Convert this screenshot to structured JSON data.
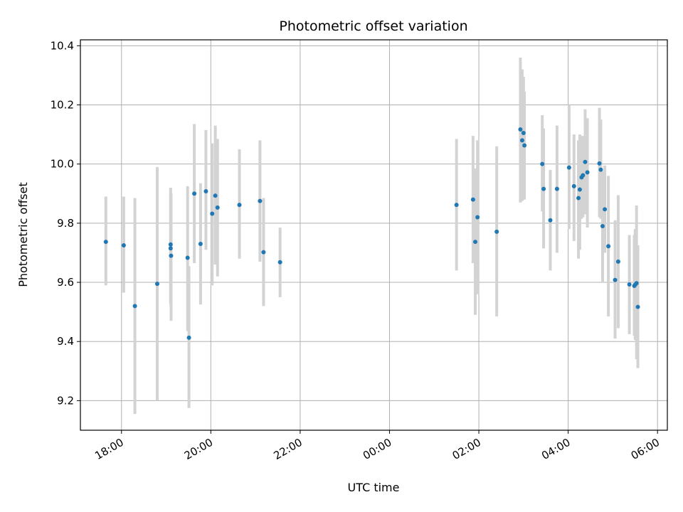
{
  "chart_data": {
    "type": "scatter",
    "title": "Photometric offset variation",
    "xlabel": "UTC time",
    "ylabel": "Photometric offset",
    "x_unit": "hours relative to 00:00 UTC (previous evening negative)",
    "xlim": [
      -6.92,
      6.22
    ],
    "ylim": [
      9.1,
      10.42
    ],
    "grid": true,
    "x_ticks": [
      {
        "value": -6,
        "label": "18:00"
      },
      {
        "value": -4,
        "label": "20:00"
      },
      {
        "value": -2,
        "label": "22:00"
      },
      {
        "value": 0,
        "label": "00:00"
      },
      {
        "value": 2,
        "label": "02:00"
      },
      {
        "value": 4,
        "label": "04:00"
      },
      {
        "value": 6,
        "label": "06:00"
      }
    ],
    "y_ticks": [
      {
        "value": 9.2,
        "label": "9.2"
      },
      {
        "value": 9.4,
        "label": "9.4"
      },
      {
        "value": 9.6,
        "label": "9.6"
      },
      {
        "value": 9.8,
        "label": "9.8"
      },
      {
        "value": 10.0,
        "label": "10.0"
      },
      {
        "value": 10.2,
        "label": "10.2"
      },
      {
        "value": 10.4,
        "label": "10.4"
      }
    ],
    "colors": {
      "point": "#1f77b4",
      "errorbar": "#d3d3d3",
      "grid": "#b0b0b0"
    },
    "points": [
      {
        "x": -6.35,
        "y": 9.737,
        "ylo": 9.59,
        "yhi": 9.89
      },
      {
        "x": -5.95,
        "y": 9.725,
        "ylo": 9.565,
        "yhi": 9.89
      },
      {
        "x": -5.7,
        "y": 9.52,
        "ylo": 9.155,
        "yhi": 9.885
      },
      {
        "x": -5.2,
        "y": 9.595,
        "ylo": 9.2,
        "yhi": 9.99
      },
      {
        "x": -4.9,
        "y": 9.728,
        "ylo": 9.525,
        "yhi": 9.92
      },
      {
        "x": -4.9,
        "y": 9.715,
        "ylo": 9.53,
        "yhi": 9.91
      },
      {
        "x": -4.89,
        "y": 9.69,
        "ylo": 9.47,
        "yhi": 9.9
      },
      {
        "x": -4.52,
        "y": 9.683,
        "ylo": 9.435,
        "yhi": 9.925
      },
      {
        "x": -4.49,
        "y": 9.413,
        "ylo": 9.175,
        "yhi": 9.655
      },
      {
        "x": -4.37,
        "y": 9.9,
        "ylo": 9.665,
        "yhi": 10.135
      },
      {
        "x": -4.23,
        "y": 9.73,
        "ylo": 9.525,
        "yhi": 9.935
      },
      {
        "x": -4.11,
        "y": 9.908,
        "ylo": 9.71,
        "yhi": 10.115
      },
      {
        "x": -3.97,
        "y": 9.832,
        "ylo": 9.59,
        "yhi": 10.07
      },
      {
        "x": -3.9,
        "y": 9.893,
        "ylo": 9.66,
        "yhi": 10.13
      },
      {
        "x": -3.85,
        "y": 9.853,
        "ylo": 9.62,
        "yhi": 10.085
      },
      {
        "x": -3.36,
        "y": 9.862,
        "ylo": 9.68,
        "yhi": 10.05
      },
      {
        "x": -2.9,
        "y": 9.875,
        "ylo": 9.67,
        "yhi": 10.08
      },
      {
        "x": -2.82,
        "y": 9.702,
        "ylo": 9.52,
        "yhi": 9.885
      },
      {
        "x": -2.45,
        "y": 9.668,
        "ylo": 9.55,
        "yhi": 9.785
      },
      {
        "x": 1.5,
        "y": 9.862,
        "ylo": 9.64,
        "yhi": 10.085
      },
      {
        "x": 1.87,
        "y": 9.88,
        "ylo": 9.665,
        "yhi": 10.095
      },
      {
        "x": 1.92,
        "y": 9.737,
        "ylo": 9.49,
        "yhi": 9.985
      },
      {
        "x": 1.97,
        "y": 9.82,
        "ylo": 9.56,
        "yhi": 10.08
      },
      {
        "x": 2.4,
        "y": 9.771,
        "ylo": 9.485,
        "yhi": 10.06
      },
      {
        "x": 2.93,
        "y": 10.117,
        "ylo": 9.87,
        "yhi": 10.36
      },
      {
        "x": 2.97,
        "y": 10.08,
        "ylo": 9.875,
        "yhi": 10.32
      },
      {
        "x": 3.0,
        "y": 10.105,
        "ylo": 9.88,
        "yhi": 10.295
      },
      {
        "x": 3.02,
        "y": 10.063,
        "ylo": 9.88,
        "yhi": 10.245
      },
      {
        "x": 3.42,
        "y": 10.0,
        "ylo": 9.84,
        "yhi": 10.165
      },
      {
        "x": 3.45,
        "y": 9.916,
        "ylo": 9.715,
        "yhi": 10.12
      },
      {
        "x": 3.6,
        "y": 9.81,
        "ylo": 9.64,
        "yhi": 9.98
      },
      {
        "x": 3.75,
        "y": 9.916,
        "ylo": 9.7,
        "yhi": 10.13
      },
      {
        "x": 4.02,
        "y": 9.988,
        "ylo": 9.78,
        "yhi": 10.2
      },
      {
        "x": 4.13,
        "y": 9.925,
        "ylo": 9.74,
        "yhi": 10.1
      },
      {
        "x": 4.23,
        "y": 9.885,
        "ylo": 9.68,
        "yhi": 10.08
      },
      {
        "x": 4.26,
        "y": 9.914,
        "ylo": 9.71,
        "yhi": 10.1
      },
      {
        "x": 4.3,
        "y": 9.955,
        "ylo": 9.815,
        "yhi": 10.095
      },
      {
        "x": 4.33,
        "y": 9.962,
        "ylo": 9.82,
        "yhi": 10.095
      },
      {
        "x": 4.38,
        "y": 10.007,
        "ylo": 9.83,
        "yhi": 10.185
      },
      {
        "x": 4.43,
        "y": 9.972,
        "ylo": 9.785,
        "yhi": 10.155
      },
      {
        "x": 4.7,
        "y": 10.002,
        "ylo": 9.82,
        "yhi": 10.19
      },
      {
        "x": 4.73,
        "y": 9.981,
        "ylo": 9.815,
        "yhi": 10.15
      },
      {
        "x": 4.77,
        "y": 9.79,
        "ylo": 9.6,
        "yhi": 9.975
      },
      {
        "x": 4.82,
        "y": 9.847,
        "ylo": 9.7,
        "yhi": 9.995
      },
      {
        "x": 4.9,
        "y": 9.722,
        "ylo": 9.485,
        "yhi": 9.96
      },
      {
        "x": 5.05,
        "y": 9.608,
        "ylo": 9.41,
        "yhi": 9.81
      },
      {
        "x": 5.12,
        "y": 9.67,
        "ylo": 9.445,
        "yhi": 9.895
      },
      {
        "x": 5.37,
        "y": 9.593,
        "ylo": 9.425,
        "yhi": 9.76
      },
      {
        "x": 5.48,
        "y": 9.588,
        "ylo": 9.42,
        "yhi": 9.76
      },
      {
        "x": 5.5,
        "y": 9.592,
        "ylo": 9.405,
        "yhi": 9.78
      },
      {
        "x": 5.53,
        "y": 9.597,
        "ylo": 9.34,
        "yhi": 9.86
      },
      {
        "x": 5.56,
        "y": 9.517,
        "ylo": 9.31,
        "yhi": 9.725
      }
    ]
  }
}
